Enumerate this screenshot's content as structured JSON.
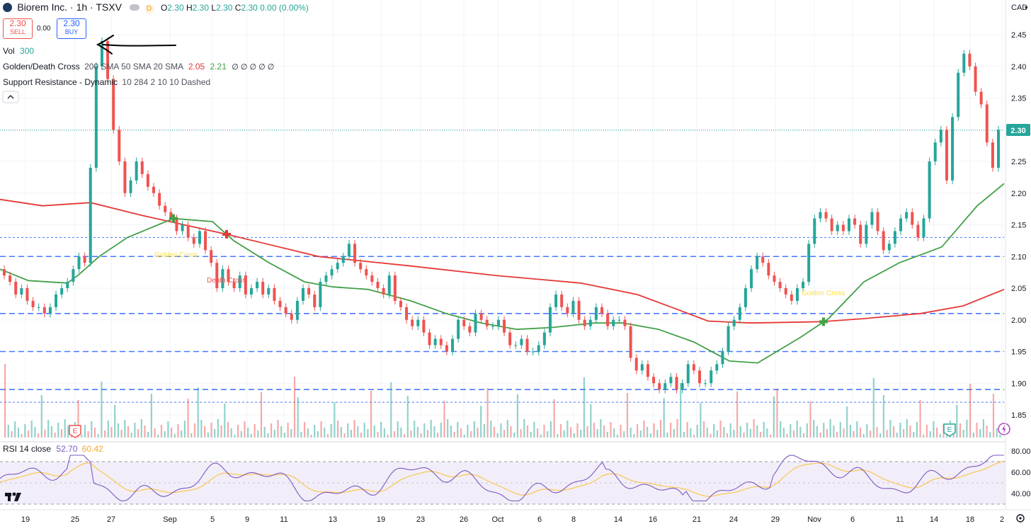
{
  "header": {
    "symbol_title": "Biorem Inc. · 1h · TSXV",
    "status_letter": "D",
    "ohlc": [
      {
        "k": "O",
        "v": "2.30"
      },
      {
        "k": "H",
        "v": "2.30"
      },
      {
        "k": "L",
        "v": "2.30"
      },
      {
        "k": "C",
        "v": "2.30"
      }
    ],
    "change": "0.00 (0.00%)",
    "currency": "CAD"
  },
  "trade": {
    "sell_price": "2.30",
    "sell_label": "SELL",
    "spread": "0.00",
    "buy_price": "2.30",
    "buy_label": "BUY"
  },
  "indicators": {
    "vol_label": "Vol",
    "vol_value": "300",
    "gdc_label": "Golden/Death Cross",
    "gdc_params": "200 SMA 50 SMA 20 SMA",
    "gdc_v1": "2.05",
    "gdc_v2": "2.21",
    "gdc_blanks": "∅ ∅ ∅ ∅ ∅",
    "sr_label": "Support Resistance - Dynamic",
    "sr_params": "10 284 2 10 10 Dashed",
    "rsi_label": "RSI 14 close",
    "rsi_v1": "52.70",
    "rsi_v2": "60.42"
  },
  "annotations": {
    "death_cross": "Death Cross",
    "golden_cross_1": "Golden Cross",
    "golden_cross_2": "Golden Cross",
    "earnings_marker": "E"
  },
  "colors": {
    "up": "#26a69a",
    "down": "#ef5350",
    "sma200": "#e53935",
    "sma50": "#43a047",
    "rsi": "#7e57c2",
    "rsi_ma": "#f9c74f",
    "sr": "#2962ff"
  },
  "chart_data": {
    "type": "candlestick",
    "timeframe": "1h",
    "y_ticks": [
      "2.45",
      "2.40",
      "2.35",
      "2.30",
      "2.25",
      "2.20",
      "2.15",
      "2.10",
      "2.05",
      "2.00",
      "1.95",
      "1.90",
      "1.85"
    ],
    "ylim": [
      1.825,
      2.46
    ],
    "last_price": "2.30",
    "x_ticks": [
      "19",
      "25",
      "27",
      "Sep",
      "5",
      "9",
      "11",
      "13",
      "19",
      "23",
      "26",
      "Oct",
      "6",
      "8",
      "14",
      "16",
      "21",
      "24",
      "29",
      "Nov",
      "6",
      "11",
      "14",
      "18",
      "2"
    ],
    "support_resistance_levels": [
      2.13,
      2.1,
      2.01,
      1.95,
      1.89,
      1.87
    ],
    "rsi_ticks": [
      "80.00",
      "60.00",
      "40.00"
    ],
    "rsi_ylim": [
      30,
      90
    ],
    "rsi_bands": [
      70,
      30
    ],
    "candle_closes": [
      2.07,
      2.06,
      2.04,
      2.05,
      2.03,
      2.02,
      2.02,
      2.01,
      2.02,
      2.04,
      2.05,
      2.06,
      2.08,
      2.1,
      2.09,
      2.24,
      2.4,
      2.44,
      2.38,
      2.3,
      2.25,
      2.2,
      2.22,
      2.25,
      2.23,
      2.21,
      2.2,
      2.18,
      2.17,
      2.16,
      2.14,
      2.15,
      2.13,
      2.12,
      2.14,
      2.11,
      2.09,
      2.05,
      2.08,
      2.06,
      2.05,
      2.07,
      2.04,
      2.05,
      2.06,
      2.04,
      2.05,
      2.03,
      2.02,
      2.01,
      2.0,
      2.03,
      2.05,
      2.04,
      2.02,
      2.06,
      2.07,
      2.08,
      2.09,
      2.1,
      2.12,
      2.09,
      2.08,
      2.07,
      2.06,
      2.05,
      2.04,
      2.07,
      2.03,
      2.02,
      2.0,
      1.99,
      2.0,
      1.98,
      1.96,
      1.97,
      1.96,
      1.95,
      1.97,
      2.0,
      1.99,
      1.98,
      2.01,
      2.0,
      1.99,
      1.99,
      2.0,
      1.98,
      1.96,
      1.96,
      1.97,
      1.95,
      1.95,
      1.96,
      1.98,
      2.02,
      2.04,
      2.02,
      2.01,
      2.03,
      2.0,
      1.99,
      2.0,
      2.02,
      2.01,
      1.99,
      2.0,
      2.0,
      1.99,
      1.94,
      1.92,
      1.93,
      1.91,
      1.9,
      1.89,
      1.9,
      1.91,
      1.89,
      1.9,
      1.93,
      1.92,
      1.9,
      1.9,
      1.92,
      1.93,
      1.95,
      1.99,
      2.0,
      2.02,
      2.05,
      2.08,
      2.1,
      2.09,
      2.07,
      2.06,
      2.05,
      2.04,
      2.03,
      2.05,
      2.06,
      2.12,
      2.16,
      2.17,
      2.16,
      2.14,
      2.15,
      2.14,
      2.16,
      2.15,
      2.12,
      2.15,
      2.17,
      2.14,
      2.11,
      2.12,
      2.14,
      2.16,
      2.17,
      2.15,
      2.13,
      2.16,
      2.25,
      2.28,
      2.3,
      2.22,
      2.32,
      2.39,
      2.42,
      2.4,
      2.36,
      2.34,
      2.28,
      2.24,
      2.3
    ],
    "sma200_points": [
      [
        0,
        2.19
      ],
      [
        60,
        2.18
      ],
      [
        128,
        2.185
      ],
      [
        200,
        2.165
      ],
      [
        320,
        2.135
      ],
      [
        450,
        2.1
      ],
      [
        580,
        2.085
      ],
      [
        700,
        2.07
      ],
      [
        820,
        2.058
      ],
      [
        900,
        2.04
      ],
      [
        960,
        2.015
      ],
      [
        1000,
        1.998
      ],
      [
        1060,
        1.995
      ],
      [
        1160,
        1.997
      ],
      [
        1220,
        2.002
      ],
      [
        1300,
        2.01
      ],
      [
        1360,
        2.022
      ],
      [
        1418,
        2.048
      ]
    ],
    "sma50_points": [
      [
        0,
        2.08
      ],
      [
        40,
        2.062
      ],
      [
        95,
        2.058
      ],
      [
        110,
        2.07
      ],
      [
        140,
        2.1
      ],
      [
        180,
        2.13
      ],
      [
        245,
        2.16
      ],
      [
        300,
        2.155
      ],
      [
        330,
        2.125
      ],
      [
        380,
        2.09
      ],
      [
        430,
        2.06
      ],
      [
        470,
        2.052
      ],
      [
        520,
        2.048
      ],
      [
        580,
        2.03
      ],
      [
        630,
        2.01
      ],
      [
        680,
        1.995
      ],
      [
        730,
        1.985
      ],
      [
        780,
        1.988
      ],
      [
        840,
        1.995
      ],
      [
        880,
        1.995
      ],
      [
        930,
        1.985
      ],
      [
        980,
        1.965
      ],
      [
        1030,
        1.935
      ],
      [
        1070,
        1.932
      ],
      [
        1130,
        1.972
      ],
      [
        1170,
        2.002
      ],
      [
        1220,
        2.06
      ],
      [
        1270,
        2.09
      ],
      [
        1330,
        2.115
      ],
      [
        1380,
        2.18
      ],
      [
        1418,
        2.215
      ]
    ],
    "cross_markers": [
      {
        "type": "golden",
        "x_index": 245,
        "price": 2.16
      },
      {
        "type": "death",
        "x_index": 320,
        "price": 2.135
      },
      {
        "type": "golden",
        "x_index": 1163,
        "price": 1.997
      }
    ]
  }
}
